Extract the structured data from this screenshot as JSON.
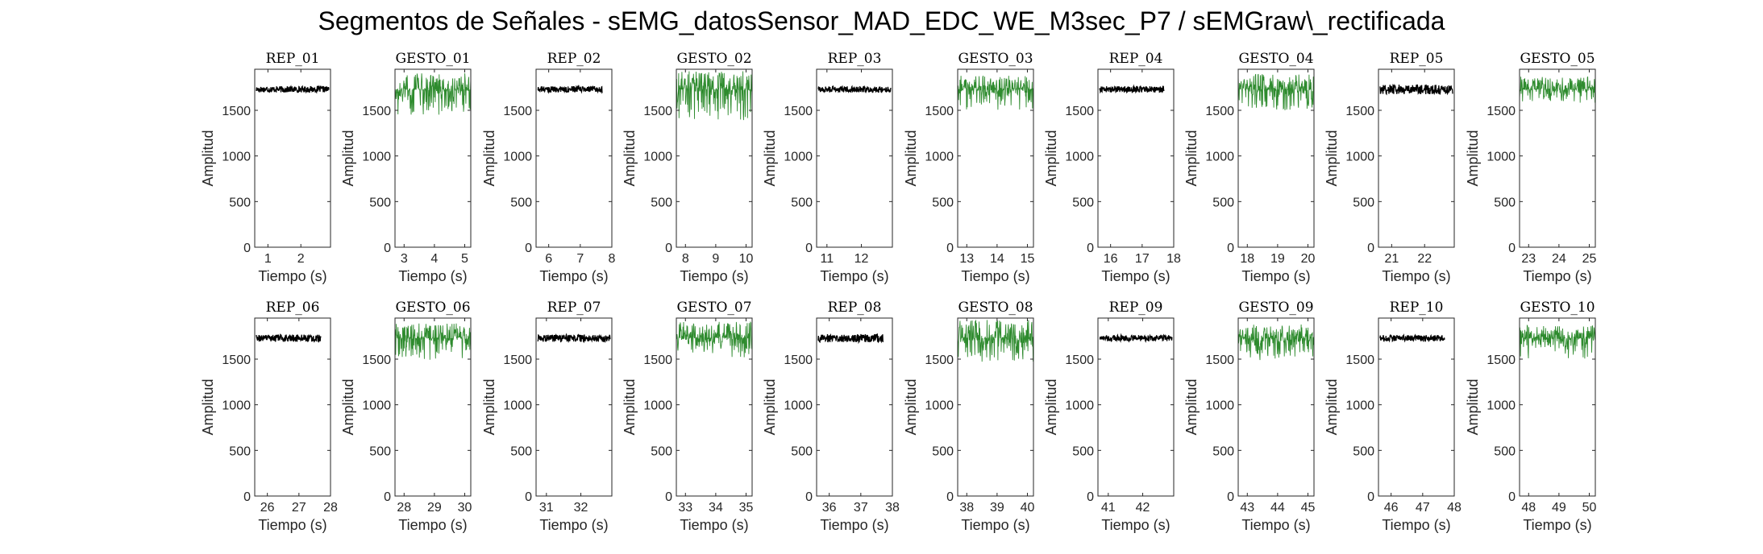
{
  "figure": {
    "title": "Segmentos de Señales - sEMG_datosSensor_MAD_EDC_WE_M3sec_P7 / sEMGraw\\_rectificada"
  },
  "colors": {
    "rep": "#000000",
    "gesto": "#2e8b2e",
    "axes": "#262626"
  },
  "chart_data": [
    {
      "type": "line",
      "title": "REP_01",
      "xlabel": "Tiempo (s)",
      "ylabel": "Amplitud",
      "xlim": [
        0.6,
        2.9
      ],
      "xticks": [
        1,
        2
      ],
      "ylim": [
        0,
        1950
      ],
      "yticks": [
        0,
        500,
        1000,
        1500
      ],
      "series": [
        {
          "name": "REP_01",
          "x_range": [
            0.65,
            2.85
          ],
          "baseline": 1730,
          "upper": 1770,
          "lower": 1690
        }
      ]
    },
    {
      "type": "line",
      "title": "GESTO_01",
      "xlabel": "Tiempo (s)",
      "ylabel": "Amplitud",
      "xlim": [
        2.7,
        5.2
      ],
      "xticks": [
        3,
        4,
        5
      ],
      "ylim": [
        0,
        1950
      ],
      "yticks": [
        0,
        500,
        1000,
        1500
      ],
      "series": [
        {
          "name": "GESTO_01",
          "x_range": [
            2.7,
            5.2
          ],
          "baseline": 1730,
          "upper": 1910,
          "lower": 1450
        }
      ]
    },
    {
      "type": "line",
      "title": "REP_02",
      "xlabel": "Tiempo (s)",
      "ylabel": "Amplitud",
      "xlim": [
        5.6,
        8.0
      ],
      "xticks": [
        6,
        7,
        8
      ],
      "ylim": [
        0,
        1950
      ],
      "yticks": [
        0,
        500,
        1000,
        1500
      ],
      "series": [
        {
          "name": "REP_02",
          "x_range": [
            5.65,
            7.7
          ],
          "baseline": 1730,
          "upper": 1770,
          "lower": 1690
        }
      ]
    },
    {
      "type": "line",
      "title": "GESTO_02",
      "xlabel": "Tiempo (s)",
      "ylabel": "Amplitud",
      "xlim": [
        7.7,
        10.2
      ],
      "xticks": [
        8,
        9,
        10
      ],
      "ylim": [
        0,
        1950
      ],
      "yticks": [
        0,
        500,
        1000,
        1500
      ],
      "series": [
        {
          "name": "GESTO_02",
          "x_range": [
            7.7,
            10.2
          ],
          "baseline": 1730,
          "upper": 1930,
          "lower": 1390
        }
      ]
    },
    {
      "type": "line",
      "title": "REP_03",
      "xlabel": "Tiempo (s)",
      "ylabel": "Amplitud",
      "xlim": [
        10.7,
        12.9
      ],
      "xticks": [
        11,
        12
      ],
      "ylim": [
        0,
        1950
      ],
      "yticks": [
        0,
        500,
        1000,
        1500
      ],
      "series": [
        {
          "name": "REP_03",
          "x_range": [
            10.75,
            12.85
          ],
          "baseline": 1730,
          "upper": 1770,
          "lower": 1690
        }
      ]
    },
    {
      "type": "line",
      "title": "GESTO_03",
      "xlabel": "Tiempo (s)",
      "ylabel": "Amplitud",
      "xlim": [
        12.7,
        15.2
      ],
      "xticks": [
        13,
        14,
        15
      ],
      "ylim": [
        0,
        1950
      ],
      "yticks": [
        0,
        500,
        1000,
        1500
      ],
      "series": [
        {
          "name": "GESTO_03",
          "x_range": [
            12.7,
            15.2
          ],
          "baseline": 1730,
          "upper": 1880,
          "lower": 1480
        }
      ]
    },
    {
      "type": "line",
      "title": "REP_04",
      "xlabel": "Tiempo (s)",
      "ylabel": "Amplitud",
      "xlim": [
        15.6,
        18.0
      ],
      "xticks": [
        16,
        17,
        18
      ],
      "ylim": [
        0,
        1950
      ],
      "yticks": [
        0,
        500,
        1000,
        1500
      ],
      "series": [
        {
          "name": "REP_04",
          "x_range": [
            15.65,
            17.7
          ],
          "baseline": 1730,
          "upper": 1770,
          "lower": 1690
        }
      ]
    },
    {
      "type": "line",
      "title": "GESTO_04",
      "xlabel": "Tiempo (s)",
      "ylabel": "Amplitud",
      "xlim": [
        17.7,
        20.2
      ],
      "xticks": [
        18,
        19,
        20
      ],
      "ylim": [
        0,
        1950
      ],
      "yticks": [
        0,
        500,
        1000,
        1500
      ],
      "series": [
        {
          "name": "GESTO_04",
          "x_range": [
            17.7,
            20.2
          ],
          "baseline": 1730,
          "upper": 1900,
          "lower": 1500
        }
      ]
    },
    {
      "type": "line",
      "title": "REP_05",
      "xlabel": "Tiempo (s)",
      "ylabel": "Amplitud",
      "xlim": [
        20.6,
        22.9
      ],
      "xticks": [
        21,
        22
      ],
      "ylim": [
        0,
        1950
      ],
      "yticks": [
        0,
        500,
        1000,
        1500
      ],
      "series": [
        {
          "name": "REP_05",
          "x_range": [
            20.65,
            22.85
          ],
          "baseline": 1730,
          "upper": 1775,
          "lower": 1650
        }
      ]
    },
    {
      "type": "line",
      "title": "GESTO_05",
      "xlabel": "Tiempo (s)",
      "ylabel": "Amplitud",
      "xlim": [
        22.7,
        25.2
      ],
      "xticks": [
        23,
        24,
        25
      ],
      "ylim": [
        0,
        1950
      ],
      "yticks": [
        0,
        500,
        1000,
        1500
      ],
      "series": [
        {
          "name": "GESTO_05",
          "x_range": [
            22.7,
            25.2
          ],
          "baseline": 1730,
          "upper": 1870,
          "lower": 1580
        }
      ]
    },
    {
      "type": "line",
      "title": "REP_06",
      "xlabel": "Tiempo (s)",
      "ylabel": "Amplitud",
      "xlim": [
        25.6,
        28.0
      ],
      "xticks": [
        26,
        27,
        28
      ],
      "ylim": [
        0,
        1950
      ],
      "yticks": [
        0,
        500,
        1000,
        1500
      ],
      "series": [
        {
          "name": "REP_06",
          "x_range": [
            25.65,
            27.7
          ],
          "baseline": 1730,
          "upper": 1775,
          "lower": 1680
        }
      ]
    },
    {
      "type": "line",
      "title": "GESTO_06",
      "xlabel": "Tiempo (s)",
      "ylabel": "Amplitud",
      "xlim": [
        27.7,
        30.2
      ],
      "xticks": [
        28,
        29,
        30
      ],
      "ylim": [
        0,
        1950
      ],
      "yticks": [
        0,
        500,
        1000,
        1500
      ],
      "series": [
        {
          "name": "GESTO_06",
          "x_range": [
            27.7,
            30.2
          ],
          "baseline": 1730,
          "upper": 1900,
          "lower": 1480
        }
      ]
    },
    {
      "type": "line",
      "title": "REP_07",
      "xlabel": "Tiempo (s)",
      "ylabel": "Amplitud",
      "xlim": [
        30.7,
        32.9
      ],
      "xticks": [
        31,
        32
      ],
      "ylim": [
        0,
        1950
      ],
      "yticks": [
        0,
        500,
        1000,
        1500
      ],
      "series": [
        {
          "name": "REP_07",
          "x_range": [
            30.75,
            32.85
          ],
          "baseline": 1730,
          "upper": 1775,
          "lower": 1680
        }
      ]
    },
    {
      "type": "line",
      "title": "GESTO_07",
      "xlabel": "Tiempo (s)",
      "ylabel": "Amplitud",
      "xlim": [
        32.7,
        35.2
      ],
      "xticks": [
        33,
        34,
        35
      ],
      "ylim": [
        0,
        1950
      ],
      "yticks": [
        0,
        500,
        1000,
        1500
      ],
      "series": [
        {
          "name": "GESTO_07",
          "x_range": [
            32.7,
            35.2
          ],
          "baseline": 1730,
          "upper": 1910,
          "lower": 1520
        }
      ]
    },
    {
      "type": "line",
      "title": "REP_08",
      "xlabel": "Tiempo (s)",
      "ylabel": "Amplitud",
      "xlim": [
        35.6,
        38.0
      ],
      "xticks": [
        36,
        37,
        38
      ],
      "ylim": [
        0,
        1950
      ],
      "yticks": [
        0,
        500,
        1000,
        1500
      ],
      "series": [
        {
          "name": "REP_08",
          "x_range": [
            35.65,
            37.7
          ],
          "baseline": 1730,
          "upper": 1785,
          "lower": 1680
        }
      ]
    },
    {
      "type": "line",
      "title": "GESTO_08",
      "xlabel": "Tiempo (s)",
      "ylabel": "Amplitud",
      "xlim": [
        37.7,
        40.2
      ],
      "xticks": [
        38,
        39,
        40
      ],
      "ylim": [
        0,
        1950
      ],
      "yticks": [
        0,
        500,
        1000,
        1500
      ],
      "series": [
        {
          "name": "GESTO_08",
          "x_range": [
            37.7,
            40.2
          ],
          "baseline": 1730,
          "upper": 1930,
          "lower": 1470
        }
      ]
    },
    {
      "type": "line",
      "title": "REP_09",
      "xlabel": "Tiempo (s)",
      "ylabel": "Amplitud",
      "xlim": [
        40.7,
        42.9
      ],
      "xticks": [
        41,
        42
      ],
      "ylim": [
        0,
        1950
      ],
      "yticks": [
        0,
        500,
        1000,
        1500
      ],
      "series": [
        {
          "name": "REP_09",
          "x_range": [
            40.75,
            42.85
          ],
          "baseline": 1730,
          "upper": 1770,
          "lower": 1690
        }
      ]
    },
    {
      "type": "line",
      "title": "GESTO_09",
      "xlabel": "Tiempo (s)",
      "ylabel": "Amplitud",
      "xlim": [
        42.7,
        45.2
      ],
      "xticks": [
        43,
        44,
        45
      ],
      "ylim": [
        0,
        1950
      ],
      "yticks": [
        0,
        500,
        1000,
        1500
      ],
      "series": [
        {
          "name": "GESTO_09",
          "x_range": [
            42.7,
            45.2
          ],
          "baseline": 1730,
          "upper": 1880,
          "lower": 1490
        }
      ]
    },
    {
      "type": "line",
      "title": "REP_10",
      "xlabel": "Tiempo (s)",
      "ylabel": "Amplitud",
      "xlim": [
        45.6,
        48.0
      ],
      "xticks": [
        46,
        47,
        48
      ],
      "ylim": [
        0,
        1950
      ],
      "yticks": [
        0,
        500,
        1000,
        1500
      ],
      "series": [
        {
          "name": "REP_10",
          "x_range": [
            45.65,
            47.7
          ],
          "baseline": 1730,
          "upper": 1770,
          "lower": 1690
        }
      ]
    },
    {
      "type": "line",
      "title": "GESTO_10",
      "xlabel": "Tiempo (s)",
      "ylabel": "Amplitud",
      "xlim": [
        47.7,
        50.2
      ],
      "xticks": [
        48,
        49,
        50
      ],
      "ylim": [
        0,
        1950
      ],
      "yticks": [
        0,
        500,
        1000,
        1500
      ],
      "series": [
        {
          "name": "GESTO_10",
          "x_range": [
            47.7,
            50.2
          ],
          "baseline": 1730,
          "upper": 1870,
          "lower": 1500
        }
      ]
    }
  ]
}
